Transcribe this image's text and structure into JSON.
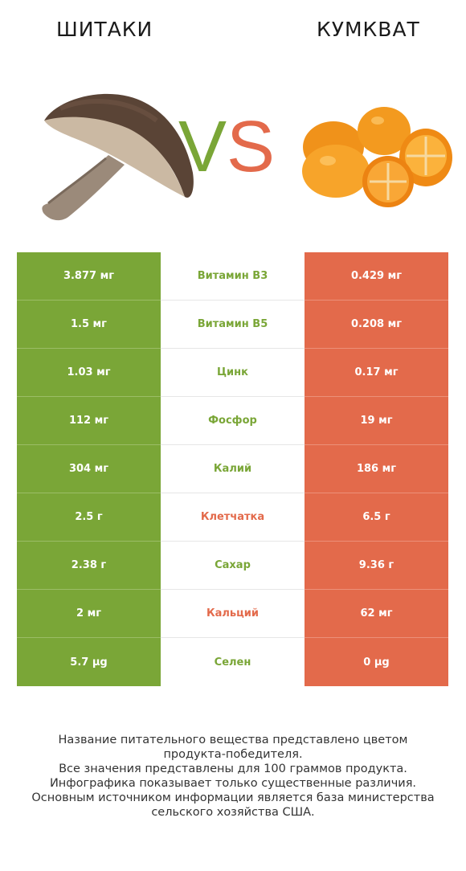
{
  "header": {
    "left_title": "ШИТАКИ",
    "right_title": "КУМКВАТ",
    "vs_v": "V",
    "vs_s": "S"
  },
  "colors": {
    "left": "#7aa637",
    "right": "#e36a4b"
  },
  "rows": [
    {
      "left": "3.877 мг",
      "nutrient": "Витамин B3",
      "right": "0.429 мг",
      "winner": "left"
    },
    {
      "left": "1.5 мг",
      "nutrient": "Витамин B5",
      "right": "0.208 мг",
      "winner": "left"
    },
    {
      "left": "1.03 мг",
      "nutrient": "Цинк",
      "right": "0.17 мг",
      "winner": "left"
    },
    {
      "left": "112 мг",
      "nutrient": "Фосфор",
      "right": "19 мг",
      "winner": "left"
    },
    {
      "left": "304 мг",
      "nutrient": "Калий",
      "right": "186 мг",
      "winner": "left"
    },
    {
      "left": "2.5 г",
      "nutrient": "Клетчатка",
      "right": "6.5 г",
      "winner": "right"
    },
    {
      "left": "2.38 г",
      "nutrient": "Сахар",
      "right": "9.36 г",
      "winner": "left"
    },
    {
      "left": "2 мг",
      "nutrient": "Кальций",
      "right": "62 мг",
      "winner": "right"
    },
    {
      "left": "5.7 µg",
      "nutrient": "Селен",
      "right": "0 µg",
      "winner": "left"
    }
  ],
  "footer": {
    "line1": "Название питательного вещества представлено цветом",
    "line2": "продукта-победителя.",
    "line3": "Все значения представлены для 100 граммов продукта.",
    "line4": "Инфографика показывает только существенные различия.",
    "line5": "Основным источником информации является база министерства",
    "line6": "сельского хозяйства США."
  }
}
